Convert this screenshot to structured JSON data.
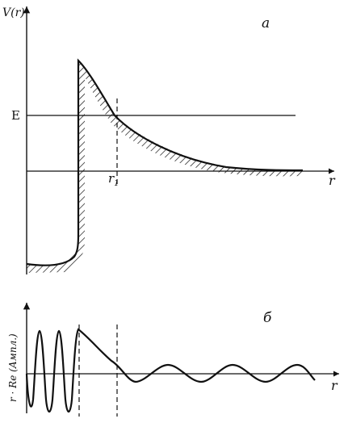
{
  "panel_a": {
    "y_axis_label": "V(r)",
    "panel_letter": "a",
    "energy_label": "E",
    "r1_label": "r",
    "r1_subscript": "1",
    "x_axis_label": "r"
  },
  "panel_b": {
    "y_axis_label": "r · Re (Ампл.)",
    "panel_letter": "б",
    "x_axis_label": "r"
  },
  "colors": {
    "ink": "#111111",
    "background": "#ffffff"
  }
}
